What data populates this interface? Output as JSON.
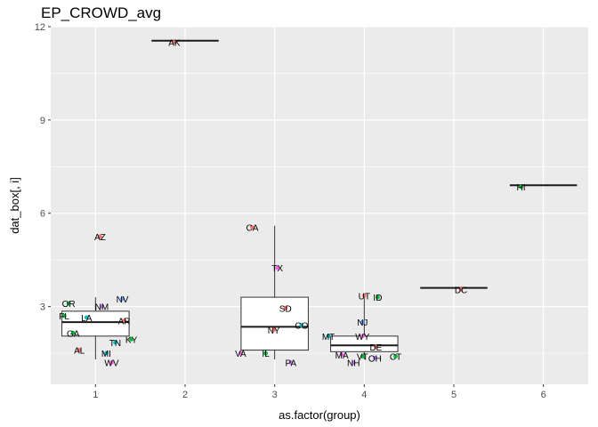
{
  "chart_data": {
    "type": "boxplot",
    "title": "EP_CROWD_avg",
    "xlabel": "as.factor(group)",
    "ylabel": "dat_box[, i]",
    "categories": [
      "1",
      "2",
      "3",
      "4",
      "5",
      "6"
    ],
    "xlim": [
      0.5,
      6.5
    ],
    "ylim": [
      0.5,
      12.0
    ],
    "yticks": [
      3,
      6,
      9,
      12
    ],
    "grid": true,
    "background": "#EBEBEB",
    "boxes": [
      {
        "group": "1",
        "q1": 2.05,
        "median": 2.5,
        "q3": 2.85,
        "whisker_low": 1.3,
        "whisker_high": 3.3
      },
      {
        "group": "2",
        "q1": 11.55,
        "median": 11.55,
        "q3": 11.55,
        "whisker_low": 11.55,
        "whisker_high": 11.55
      },
      {
        "group": "3",
        "q1": 1.6,
        "median": 2.35,
        "q3": 3.3,
        "whisker_low": 1.3,
        "whisker_high": 5.6
      },
      {
        "group": "4",
        "q1": 1.55,
        "median": 1.75,
        "q3": 2.05,
        "whisker_low": 1.3,
        "whisker_high": 3.35
      },
      {
        "group": "5",
        "q1": 3.6,
        "median": 3.6,
        "q3": 3.6,
        "whisker_low": 3.6,
        "whisker_high": 3.6
      },
      {
        "group": "6",
        "q1": 6.9,
        "median": 6.9,
        "q3": 6.9,
        "whisker_low": 6.9,
        "whisker_high": 6.9
      }
    ],
    "points": [
      {
        "label": "OR",
        "x": 0.7,
        "y": 3.1,
        "color": "#00BA38"
      },
      {
        "label": "FL",
        "x": 0.65,
        "y": 2.7,
        "color": "#00BA38"
      },
      {
        "label": "LA",
        "x": 0.9,
        "y": 2.65,
        "color": "#00BFC4"
      },
      {
        "label": "NM",
        "x": 1.07,
        "y": 3.0,
        "color": "#C77CFF"
      },
      {
        "label": "NV",
        "x": 1.3,
        "y": 3.25,
        "color": "#619CFF"
      },
      {
        "label": "AR",
        "x": 1.32,
        "y": 2.55,
        "color": "#F8766D"
      },
      {
        "label": "GA",
        "x": 0.75,
        "y": 2.15,
        "color": "#00BA38"
      },
      {
        "label": "TN",
        "x": 1.22,
        "y": 1.85,
        "color": "#00BFC4"
      },
      {
        "label": "KY",
        "x": 1.4,
        "y": 1.95,
        "color": "#00BA38"
      },
      {
        "label": "AL",
        "x": 0.82,
        "y": 1.6,
        "color": "#F8766D"
      },
      {
        "label": "MI",
        "x": 1.12,
        "y": 1.5,
        "color": "#00BFC4"
      },
      {
        "label": "WV",
        "x": 1.18,
        "y": 1.2,
        "color": "#F564E3"
      },
      {
        "label": "AZ",
        "x": 1.05,
        "y": 5.25,
        "color": "#F8766D"
      },
      {
        "label": "AK",
        "x": 1.88,
        "y": 11.5,
        "color": "#F8766D"
      },
      {
        "label": "CA",
        "x": 2.75,
        "y": 5.55,
        "color": "#F8766D"
      },
      {
        "label": "TX",
        "x": 3.03,
        "y": 4.25,
        "color": "#F564E3"
      },
      {
        "label": "SD",
        "x": 3.12,
        "y": 2.95,
        "color": "#F8766D"
      },
      {
        "label": "CO",
        "x": 3.3,
        "y": 2.4,
        "color": "#00BFC4"
      },
      {
        "label": "NY",
        "x": 2.99,
        "y": 2.25,
        "color": "#F8766D"
      },
      {
        "label": "VA",
        "x": 2.62,
        "y": 1.5,
        "color": "#F564E3"
      },
      {
        "label": "IL",
        "x": 2.9,
        "y": 1.5,
        "color": "#00BA38"
      },
      {
        "label": "PA",
        "x": 3.18,
        "y": 1.2,
        "color": "#C77CFF"
      },
      {
        "label": "UT",
        "x": 4.0,
        "y": 3.35,
        "color": "#F8766D"
      },
      {
        "label": "ID",
        "x": 4.15,
        "y": 3.3,
        "color": "#00BA38"
      },
      {
        "label": "NJ",
        "x": 3.98,
        "y": 2.5,
        "color": "#619CFF"
      },
      {
        "label": "MT",
        "x": 3.6,
        "y": 2.05,
        "color": "#00BFC4"
      },
      {
        "label": "WY",
        "x": 3.98,
        "y": 2.05,
        "color": "#F564E3"
      },
      {
        "label": "DE",
        "x": 4.13,
        "y": 1.7,
        "color": "#F8766D"
      },
      {
        "label": "MA",
        "x": 3.75,
        "y": 1.45,
        "color": "#F564E3"
      },
      {
        "label": "VT",
        "x": 3.98,
        "y": 1.4,
        "color": "#00BA38"
      },
      {
        "label": "NH",
        "x": 3.88,
        "y": 1.2,
        "color": "#C77CFF"
      },
      {
        "label": "OH",
        "x": 4.12,
        "y": 1.35,
        "color": "#C77CFF"
      },
      {
        "label": "CT",
        "x": 4.35,
        "y": 1.4,
        "color": "#00BA38"
      },
      {
        "label": "DC",
        "x": 5.08,
        "y": 3.55,
        "color": "#F8766D"
      },
      {
        "label": "HI",
        "x": 5.75,
        "y": 6.85,
        "color": "#00BA38"
      }
    ]
  }
}
